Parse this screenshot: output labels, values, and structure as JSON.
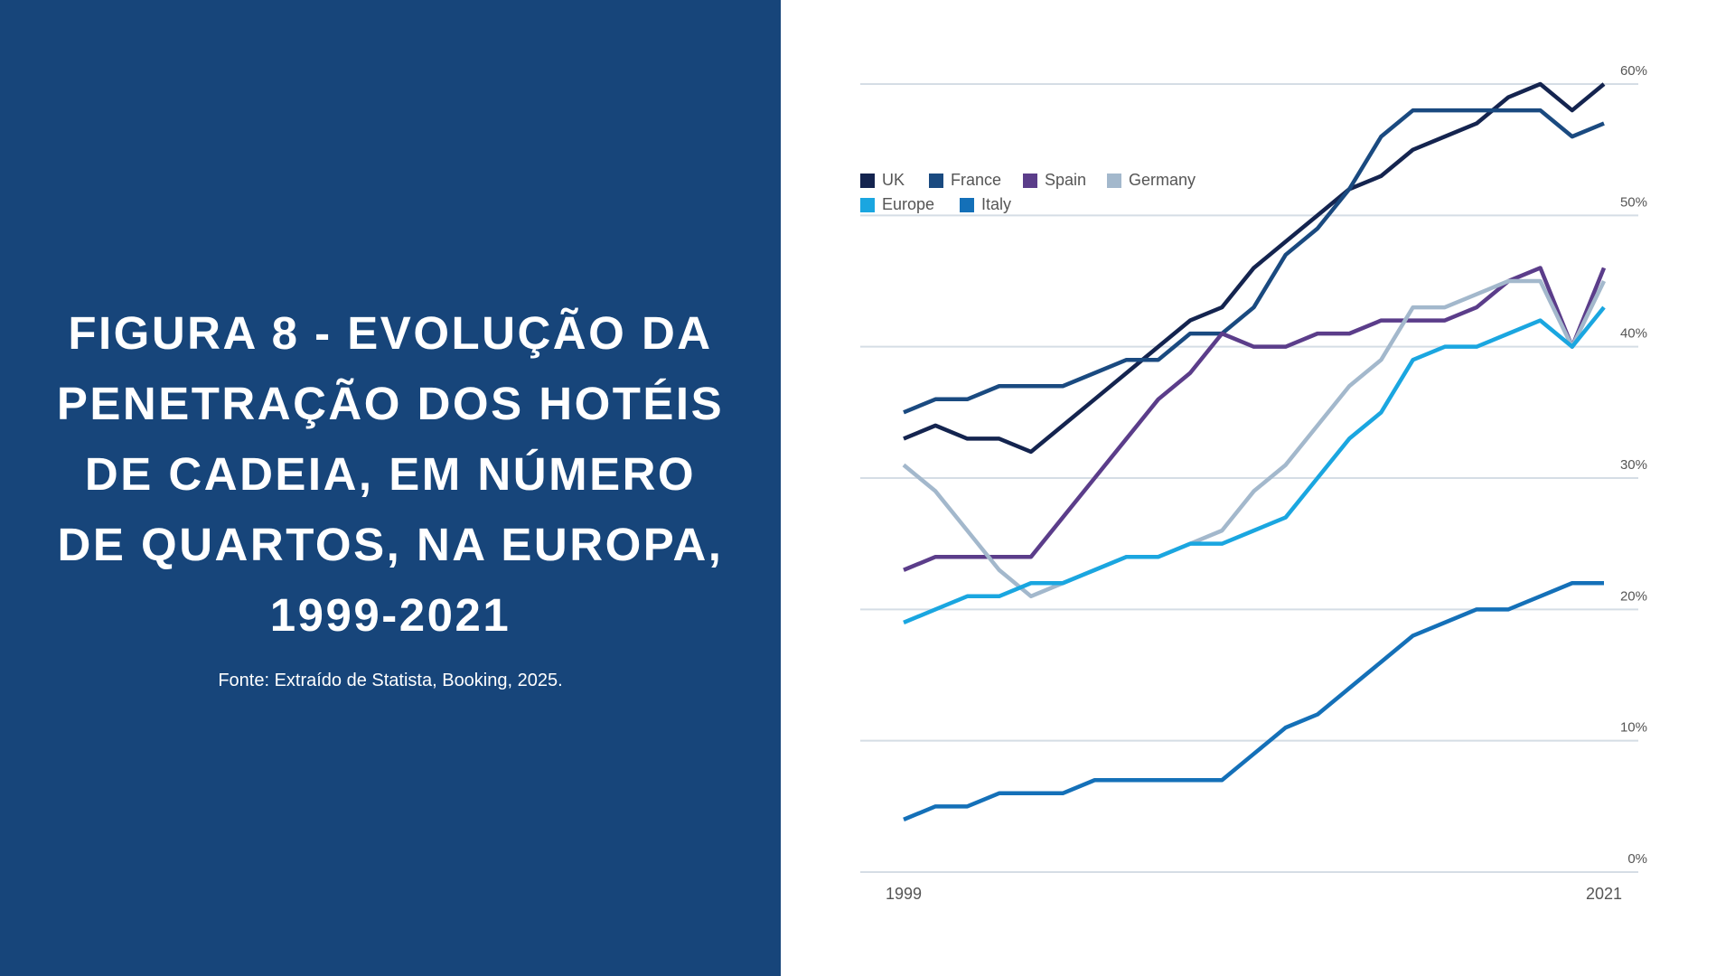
{
  "chart_data": {
    "type": "line",
    "title": "FIGURA 8 - EVOLUÇÃO DA PENETRAÇÃO DOS HOTÉIS DE CADEIA, EM NÚMERO DE QUARTOS, NA EUROPA, 1999-2021",
    "source": "Fonte: Extraído de Statista, Booking, 2025.",
    "categories": [
      "1999",
      null,
      null,
      null,
      null,
      null,
      null,
      null,
      null,
      null,
      null,
      null,
      null,
      null,
      null,
      null,
      null,
      null,
      null,
      null,
      null,
      null,
      "2021"
    ],
    "series": [
      {
        "name": "UK",
        "color": "#14244f",
        "values": [
          33,
          34,
          33,
          33,
          32,
          34,
          36,
          38,
          40,
          42,
          43,
          46,
          48,
          50,
          52,
          53,
          55,
          56,
          57,
          59,
          60,
          58,
          60
        ]
      },
      {
        "name": "France",
        "color": "#1a4a80",
        "values": [
          35,
          36,
          36,
          37,
          37,
          37,
          38,
          39,
          39,
          41,
          41,
          43,
          47,
          49,
          52,
          56,
          58,
          58,
          58,
          58,
          58,
          56,
          57
        ]
      },
      {
        "name": "Spain",
        "color": "#5b3d8a",
        "values": [
          23,
          24,
          24,
          24,
          24,
          27,
          30,
          33,
          36,
          38,
          41,
          40,
          40,
          41,
          41,
          42,
          42,
          42,
          43,
          45,
          46,
          40,
          46
        ]
      },
      {
        "name": "Germany",
        "color": "#a3b8cc",
        "values": [
          31,
          29,
          26,
          23,
          21,
          22,
          23,
          24,
          24,
          25,
          26,
          29,
          31,
          34,
          37,
          39,
          43,
          43,
          44,
          45,
          45,
          40,
          45
        ]
      },
      {
        "name": "Europe",
        "color": "#1aa6e0",
        "values": [
          19,
          20,
          21,
          21,
          22,
          22,
          23,
          24,
          24,
          25,
          25,
          26,
          27,
          30,
          33,
          35,
          39,
          40,
          40,
          41,
          42,
          40,
          43
        ]
      },
      {
        "name": "Italy",
        "color": "#1470b8",
        "values": [
          4,
          5,
          5,
          6,
          6,
          6,
          7,
          7,
          7,
          7,
          7,
          9,
          11,
          12,
          14,
          16,
          18,
          19,
          20,
          20,
          21,
          22,
          22
        ]
      }
    ],
    "ylim": [
      0,
      60
    ],
    "yticks": [
      {
        "value": 0,
        "label": "0%"
      },
      {
        "value": 10,
        "label": "10%"
      },
      {
        "value": 20,
        "label": "20%"
      },
      {
        "value": 30,
        "label": "30%"
      },
      {
        "value": 40,
        "label": "40%"
      },
      {
        "value": 50,
        "label": "50%"
      },
      {
        "value": 60,
        "label": "60%"
      }
    ],
    "grid": true,
    "legend": "upper left"
  }
}
